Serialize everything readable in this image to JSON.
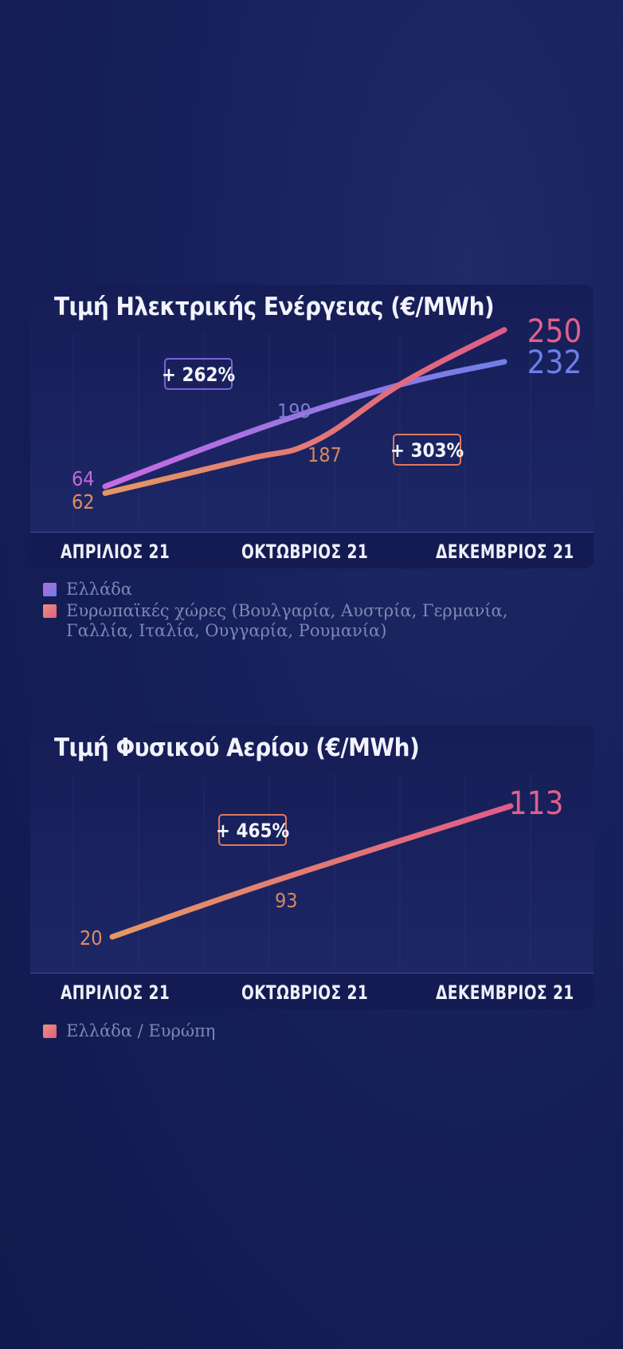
{
  "electricity": {
    "title": "Τιμή Ηλεκτρικής Ενέργειας (€/MWh)",
    "x_labels": [
      "ΑΠΡΙΛΙΟΣ 21",
      "ΟΚΤΩΒΡΙΟΣ 21",
      "ΔΕΚΕΜΒΡΙΟΣ 21"
    ],
    "legend": [
      {
        "label": "Ελλάδα",
        "color": "#8f79e8"
      },
      {
        "label": "Ευρωπαϊκές χώρες (Βουλγαρία, Αυστρία, Γερμανία, Γαλλία, Ιταλία, Ουγγαρία, Ρουμανία)",
        "color": "#e8866f"
      }
    ],
    "badges": [
      {
        "text": "+ 262%",
        "color": "#7d62dc"
      },
      {
        "text": "+ 303%",
        "color": "#e0775f"
      }
    ]
  },
  "gas": {
    "title": "Τιμή Φυσικού Αερίου (€/MWh)",
    "x_labels": [
      "ΑΠΡΙΛΙΟΣ 21",
      "ΟΚΤΩΒΡΙΟΣ 21",
      "ΔΕΚΕΜΒΡΙΟΣ 21"
    ],
    "legend": [
      {
        "label": "Ελλάδα / Ευρώπη",
        "color": "#e57e7c"
      }
    ],
    "badges": [
      {
        "text": "+ 465%",
        "color": "#e0775f"
      }
    ]
  },
  "chart_data": [
    {
      "type": "line",
      "title": "Τιμή Ηλεκτρικής Ενέργειας (€/MWh)",
      "categories": [
        "ΑΠΡΙΛΙΟΣ 21",
        "ΟΚΤΩΒΡΙΟΣ 21",
        "ΔΕΚΕΜΒΡΙΟΣ 21"
      ],
      "series": [
        {
          "name": "Ελλάδα",
          "values": [
            64,
            199,
            232
          ],
          "labels": [
            "64",
            "199",
            "232"
          ],
          "colors": [
            "#c86be0",
            "#6f7fe6"
          ]
        },
        {
          "name": "Ευρωπαϊκές χώρες (Βουλγαρία, Αυστρία, Γερμανία, Γαλλία, Ιταλία, Ουγγαρία, Ρουμανία)",
          "values": [
            62,
            187,
            250
          ],
          "labels": [
            "62",
            "187",
            "250"
          ],
          "colors": [
            "#e59862",
            "#e05c88"
          ]
        }
      ],
      "annotations": [
        "+ 262%",
        "+ 303%"
      ],
      "grid": true,
      "legend": "bottom"
    },
    {
      "type": "line",
      "title": "Τιμή Φυσικού Αερίου (€/MWh)",
      "categories": [
        "ΑΠΡΙΛΙΟΣ 21",
        "ΟΚΤΩΒΡΙΟΣ 21",
        "ΔΕΚΕΜΒΡΙΟΣ 21"
      ],
      "series": [
        {
          "name": "Ελλάδα / Ευρώπη",
          "values": [
            20,
            93,
            113
          ],
          "labels": [
            "20",
            "93",
            "113"
          ],
          "colors": [
            "#e59862",
            "#e05c88"
          ]
        }
      ],
      "annotations": [
        "+ 465%"
      ],
      "grid": true,
      "legend": "bottom"
    }
  ]
}
